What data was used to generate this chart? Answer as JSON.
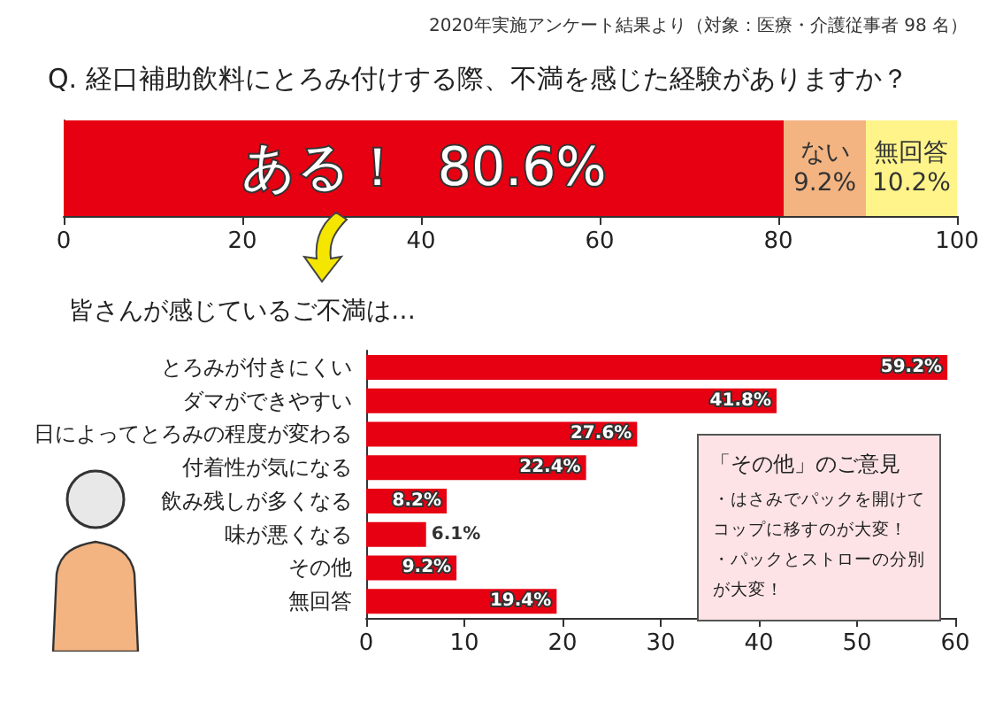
{
  "chart_data": [
    {
      "type": "bar",
      "orientation": "horizontal",
      "stacked": true,
      "title": "Q. 経口補助飲料にとろみ付けする際、不満を感じた経験がありますか？",
      "annotations": [
        "2020年実施アンケート結果より（対象：医療・介護従事者 98 名）"
      ],
      "categories": [
        null
      ],
      "series": [
        {
          "name": "ある！",
          "color": "#e60012",
          "values": [
            80.6
          ],
          "value_labels": [
            "80.6%"
          ]
        },
        {
          "name": "ない",
          "color": "#f3b482",
          "values": [
            9.2
          ],
          "value_labels": [
            "9.2%"
          ]
        },
        {
          "name": "無回答",
          "color": "#fff48a",
          "values": [
            10.2
          ],
          "value_labels": [
            "10.2%"
          ]
        }
      ],
      "xlim": [
        0,
        100
      ],
      "xticks": [
        0,
        20,
        40,
        60,
        80,
        100
      ],
      "grid": false,
      "legend": false
    },
    {
      "type": "bar",
      "orientation": "horizontal",
      "title": "皆さんが感じているご不満は…",
      "annotations": [
        "「その他」のご意見",
        "・はさみでパックを開けてコップに移すのが大変！",
        "・パックとストローの分別が大変！"
      ],
      "categories": [
        "とろみが付きにくい",
        "ダマができやすい",
        "日によってとろみの程度が変わる",
        "付着性が気になる",
        "飲み残しが多くなる",
        "味が悪くなる",
        "その他",
        "無回答"
      ],
      "series": [
        {
          "color": "#e60012",
          "values": [
            59.2,
            41.8,
            27.6,
            22.4,
            8.2,
            6.1,
            9.2,
            19.4
          ],
          "value_labels": [
            "59.2%",
            "41.8%",
            "27.6%",
            "22.4%",
            "8.2%",
            "6.1%",
            "9.2%",
            "19.4%"
          ]
        }
      ],
      "xlim": [
        0,
        60
      ],
      "xticks": [
        0,
        10,
        20,
        30,
        40,
        50,
        60
      ],
      "grid": false,
      "legend": false
    }
  ]
}
